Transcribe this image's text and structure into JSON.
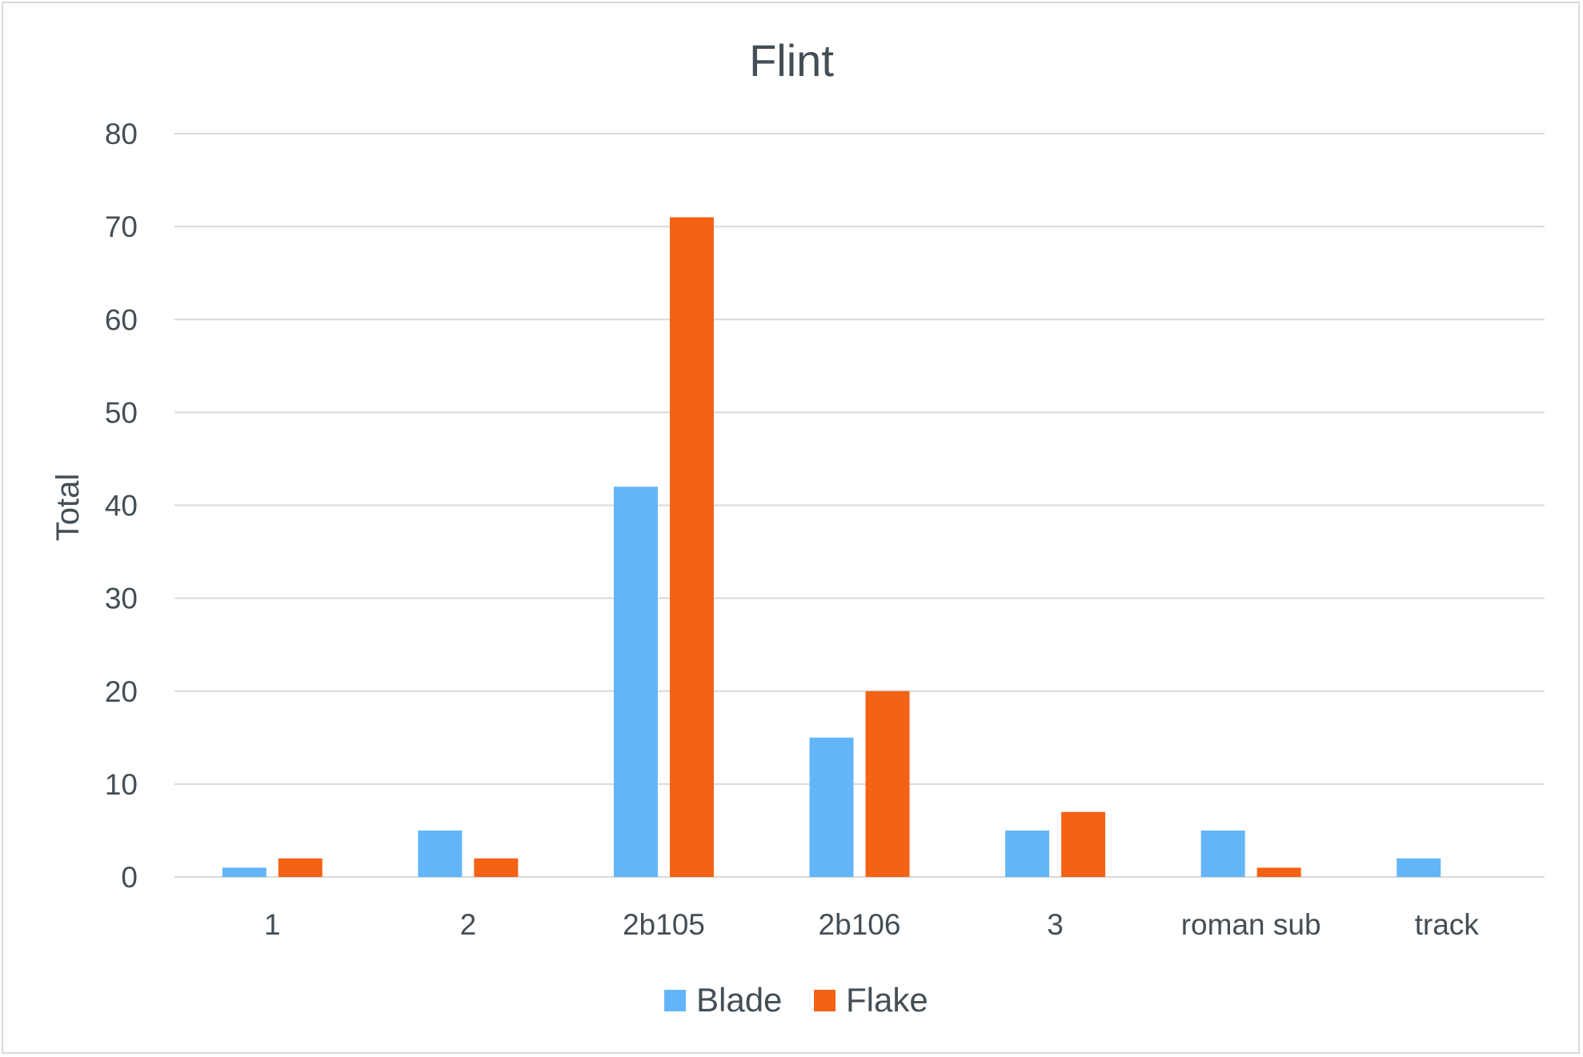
{
  "chart_data": {
    "type": "bar",
    "title": "Flint",
    "xlabel": "",
    "ylabel": "Total",
    "categories": [
      "1",
      "2",
      "2b105",
      "2b106",
      "3",
      "roman sub",
      "track"
    ],
    "series": [
      {
        "name": "Blade",
        "color": "#63b5f9",
        "values": [
          1,
          5,
          42,
          15,
          5,
          5,
          2
        ]
      },
      {
        "name": "Flake",
        "color": "#f46215",
        "values": [
          2,
          2,
          71,
          20,
          7,
          1,
          0
        ]
      }
    ],
    "ylim": [
      0,
      80
    ],
    "yticks": [
      0,
      10,
      20,
      30,
      40,
      50,
      60,
      70,
      80
    ],
    "grid": true,
    "legend": "bottom"
  }
}
